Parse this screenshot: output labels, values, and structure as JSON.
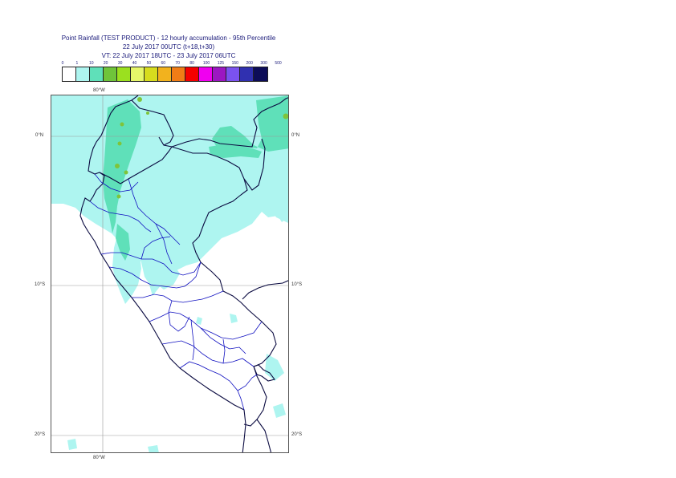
{
  "header": {
    "line1": "Point Rainfall (TEST PRODUCT) - 12 hourly accumulation - 95th Percentile",
    "line2": "22 July 2017 00UTC (t+18,t+30)",
    "line3": "VT: 22 July 2017 18UTC - 23 July 2017 06UTC"
  },
  "legend": {
    "ticks": [
      "0",
      "1",
      "10",
      "20",
      "30",
      "40",
      "50",
      "60",
      "70",
      "80",
      "100",
      "125",
      "150",
      "200",
      "300",
      "500"
    ],
    "colors": [
      "#ffffff",
      "#aef5f0",
      "#5fe0b9",
      "#6fc43a",
      "#9be01f",
      "#e6f66a",
      "#d7dc1e",
      "#f2b21e",
      "#f07c16",
      "#f40000",
      "#f000f0",
      "#9c17c2",
      "#7b52ef",
      "#3030b0",
      "#0c0c58"
    ]
  },
  "axes": {
    "lat_labels": [
      "0°N",
      "10°S",
      "20°S"
    ],
    "lon_labels": [
      "80°W",
      "80°W"
    ]
  },
  "map_colors": {
    "light_rain": "#aef5f0",
    "moderate_rain": "#5fe0b9",
    "heavy_rain": "#7fc43a",
    "coast": "#0a0a40",
    "admin": "#1010c0",
    "grid": "#9a9a9a"
  }
}
